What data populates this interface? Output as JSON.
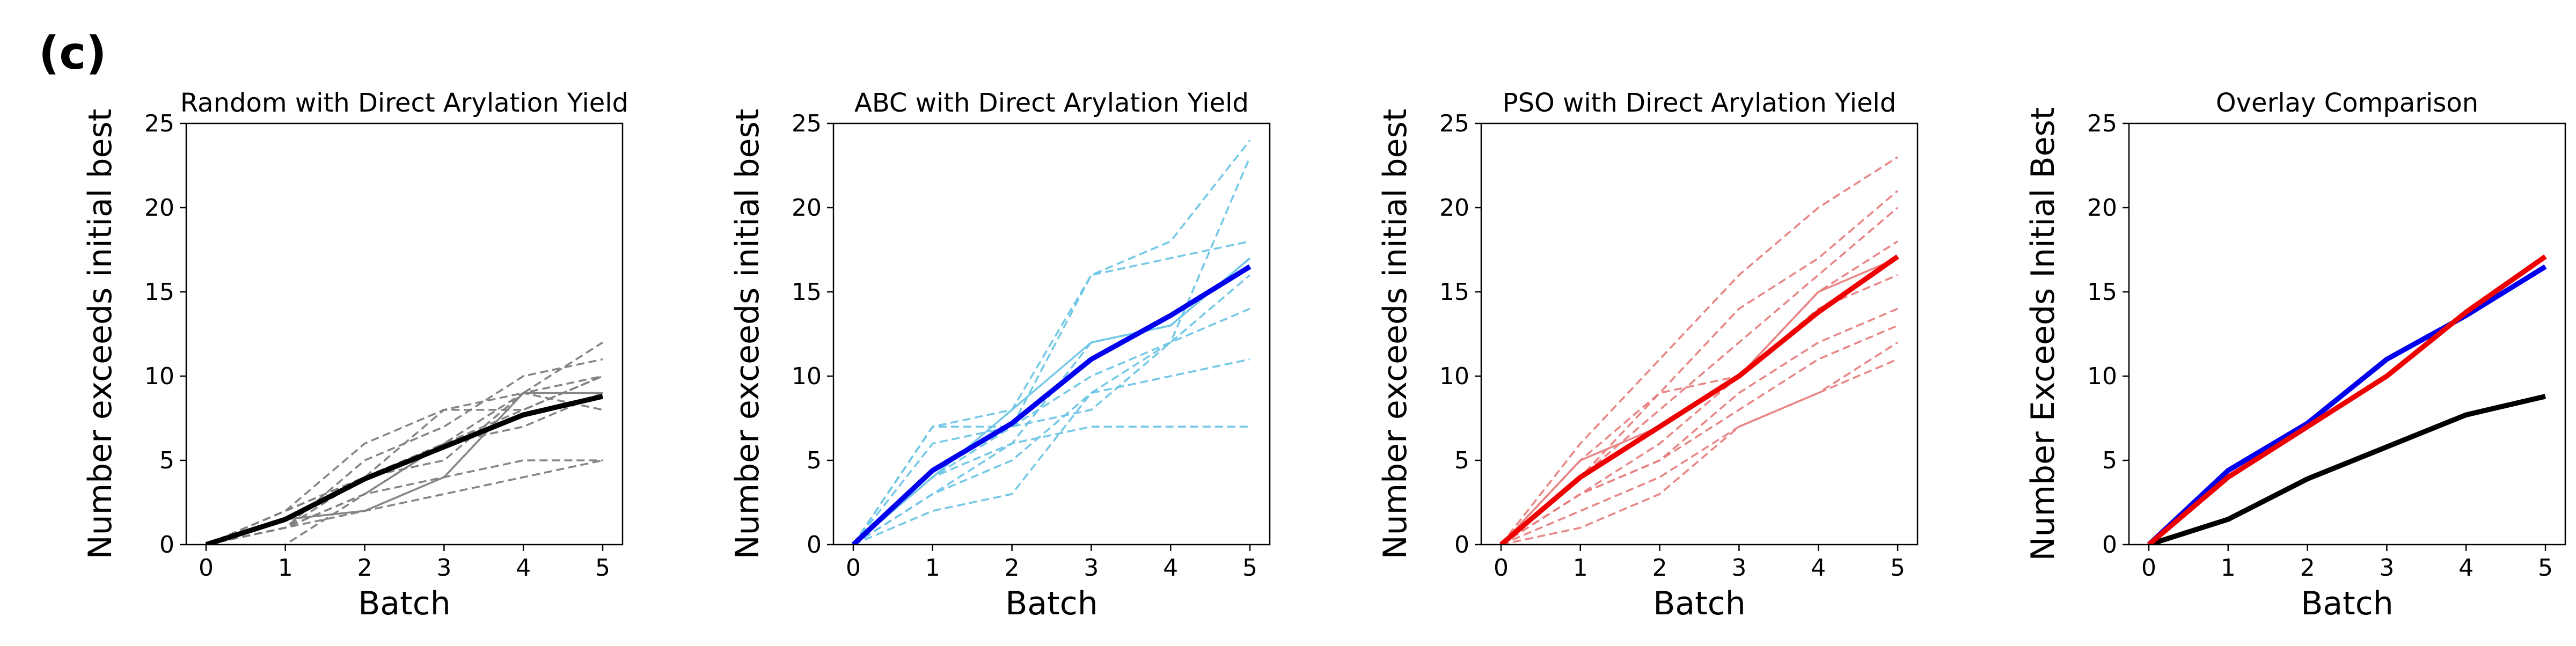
{
  "figure": {
    "panel_label": "(c)"
  },
  "chart_data": [
    {
      "type": "line",
      "title": "Random with Direct Arylation Yield",
      "xlabel": "Batch",
      "ylabel": "Number exceeds initial best",
      "xlim": [
        -0.25,
        5.25
      ],
      "ylim": [
        0,
        25
      ],
      "xticks": [
        0,
        1,
        2,
        3,
        4,
        5
      ],
      "yticks": [
        0,
        5,
        10,
        15,
        20,
        25
      ],
      "x": [
        0,
        1,
        2,
        3,
        4,
        5
      ],
      "grid": false,
      "mean_color": "#000000",
      "trial_color": "#808080",
      "series": [
        {
          "values": [
            0,
            1.5,
            3.9,
            5.8,
            7.7,
            8.8
          ],
          "role": "mean"
        },
        {
          "values": [
            0,
            2,
            6,
            8,
            9,
            12
          ],
          "role": "trial",
          "style": "dashed"
        },
        {
          "values": [
            0,
            1,
            5,
            7,
            10,
            11
          ],
          "role": "trial",
          "style": "dashed"
        },
        {
          "values": [
            0,
            2,
            4,
            8,
            8,
            10
          ],
          "role": "trial",
          "style": "dashed"
        },
        {
          "values": [
            0,
            2,
            4,
            6,
            8,
            10
          ],
          "role": "trial",
          "style": "dashed"
        },
        {
          "values": [
            0,
            1,
            3,
            6,
            7,
            9
          ],
          "role": "trial",
          "style": "dashed"
        },
        {
          "values": [
            0,
            1,
            2,
            3,
            4,
            5
          ],
          "role": "trial",
          "style": "dashed"
        },
        {
          "values": [
            0,
            1,
            3,
            4,
            5,
            5
          ],
          "role": "trial",
          "style": "dashed"
        },
        {
          "values": [
            0,
            1,
            4,
            5,
            9,
            8
          ],
          "role": "trial",
          "style": "dashed"
        },
        {
          "values": [
            -1,
            0,
            3,
            6,
            9,
            10
          ],
          "role": "trial",
          "style": "dashed"
        },
        {
          "values": [
            0,
            1.5,
            2,
            4,
            9,
            9
          ],
          "role": "trial",
          "style": "solid"
        }
      ]
    },
    {
      "type": "line",
      "title": "ABC with Direct Arylation Yield",
      "xlabel": "Batch",
      "ylabel": "Number exceeds initial best",
      "xlim": [
        -0.25,
        5.25
      ],
      "ylim": [
        0,
        25
      ],
      "xticks": [
        0,
        1,
        2,
        3,
        4,
        5
      ],
      "yticks": [
        0,
        5,
        10,
        15,
        20,
        25
      ],
      "x": [
        0,
        1,
        2,
        3,
        4,
        5
      ],
      "grid": false,
      "mean_color": "#0000ee",
      "trial_color": "#6ec6e6",
      "series": [
        {
          "values": [
            0,
            4.4,
            7.2,
            11,
            13.6,
            16.5
          ],
          "role": "mean"
        },
        {
          "values": [
            0,
            7,
            8,
            16,
            18,
            24
          ],
          "role": "trial",
          "style": "dashed"
        },
        {
          "values": [
            0,
            6,
            7,
            16,
            17,
            18
          ],
          "role": "trial",
          "style": "dashed"
        },
        {
          "values": [
            0,
            4,
            7,
            10,
            12,
            23
          ],
          "role": "trial",
          "style": "dashed"
        },
        {
          "values": [
            0,
            3,
            6,
            12,
            13,
            17
          ],
          "role": "trial",
          "style": "dashed"
        },
        {
          "values": [
            0,
            3,
            5,
            9,
            12,
            14
          ],
          "role": "trial",
          "style": "dashed"
        },
        {
          "values": [
            0,
            2,
            3,
            9,
            10,
            11
          ],
          "role": "trial",
          "style": "dashed"
        },
        {
          "values": [
            0,
            4,
            6,
            7,
            7,
            7
          ],
          "role": "trial",
          "style": "dashed"
        },
        {
          "values": [
            0,
            7,
            7,
            8,
            12,
            16
          ],
          "role": "trial",
          "style": "dashed"
        },
        {
          "values": [
            0,
            4,
            8,
            12,
            13,
            17
          ],
          "role": "trial",
          "style": "solid"
        }
      ]
    },
    {
      "type": "line",
      "title": "PSO with Direct Arylation Yield",
      "xlabel": "Batch",
      "ylabel": "Number exceeds initial best",
      "xlim": [
        -0.25,
        5.25
      ],
      "ylim": [
        0,
        25
      ],
      "xticks": [
        0,
        1,
        2,
        3,
        4,
        5
      ],
      "yticks": [
        0,
        5,
        10,
        15,
        20,
        25
      ],
      "x": [
        0,
        1,
        2,
        3,
        4,
        5
      ],
      "grid": false,
      "mean_color": "#ee0000",
      "trial_color": "#e88080",
      "series": [
        {
          "values": [
            0,
            4,
            7,
            10,
            13.8,
            17.1
          ],
          "role": "mean"
        },
        {
          "values": [
            0,
            6,
            11,
            16,
            20,
            23
          ],
          "role": "trial",
          "style": "dashed"
        },
        {
          "values": [
            0,
            5,
            9,
            14,
            17,
            21
          ],
          "role": "trial",
          "style": "dashed"
        },
        {
          "values": [
            0,
            4,
            8,
            12,
            16,
            20
          ],
          "role": "trial",
          "style": "dashed"
        },
        {
          "values": [
            0,
            4,
            9,
            10,
            15,
            18
          ],
          "role": "trial",
          "style": "dashed"
        },
        {
          "values": [
            0,
            3,
            6,
            10,
            14,
            16
          ],
          "role": "trial",
          "style": "dashed"
        },
        {
          "values": [
            0,
            3,
            5,
            9,
            12,
            14
          ],
          "role": "trial",
          "style": "dashed"
        },
        {
          "values": [
            0,
            3,
            5,
            8,
            11,
            13
          ],
          "role": "trial",
          "style": "dashed"
        },
        {
          "values": [
            0,
            2,
            4,
            7,
            9,
            12
          ],
          "role": "trial",
          "style": "dashed"
        },
        {
          "values": [
            0,
            1,
            3,
            7,
            9,
            11
          ],
          "role": "trial",
          "style": "dashed"
        },
        {
          "values": [
            0,
            5,
            7,
            10,
            15,
            17
          ],
          "role": "trial",
          "style": "solid"
        }
      ]
    },
    {
      "type": "line",
      "title": "Overlay Comparison",
      "xlabel": "Batch",
      "ylabel": "Number Exceeds Initial Best",
      "xlim": [
        -0.25,
        5.25
      ],
      "ylim": [
        0,
        25
      ],
      "xticks": [
        0,
        1,
        2,
        3,
        4,
        5
      ],
      "yticks": [
        0,
        5,
        10,
        15,
        20,
        25
      ],
      "x": [
        0,
        1,
        2,
        3,
        4,
        5
      ],
      "grid": false,
      "series": [
        {
          "values": [
            0,
            1.5,
            3.9,
            5.8,
            7.7,
            8.8
          ],
          "role": "overlay",
          "color": "#000000"
        },
        {
          "values": [
            0,
            4.4,
            7.2,
            11,
            13.6,
            16.5
          ],
          "role": "overlay",
          "color": "#0000ee"
        },
        {
          "values": [
            0,
            4,
            7,
            10,
            13.8,
            17.1
          ],
          "role": "overlay",
          "color": "#ee0000"
        }
      ]
    }
  ]
}
